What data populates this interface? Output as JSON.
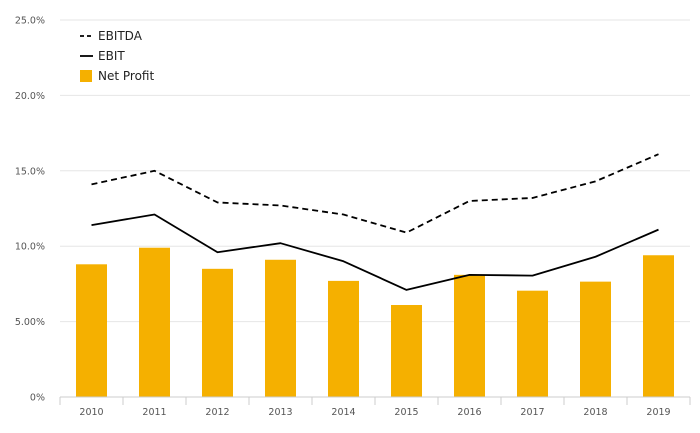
{
  "chart_data": {
    "type": "bar",
    "categories": [
      "2010",
      "2011",
      "2012",
      "2013",
      "2014",
      "2015",
      "2016",
      "2017",
      "2018",
      "2019"
    ],
    "series": [
      {
        "name": "EBITDA",
        "kind": "line",
        "style": "dashed",
        "color": "#000000",
        "values": [
          14.1,
          15.0,
          12.9,
          12.7,
          12.1,
          10.9,
          13.0,
          13.2,
          14.3,
          16.1
        ]
      },
      {
        "name": "EBIT",
        "kind": "line",
        "style": "solid",
        "color": "#000000",
        "values": [
          11.4,
          12.1,
          9.6,
          10.2,
          9.0,
          7.1,
          8.1,
          8.05,
          9.3,
          11.1
        ]
      },
      {
        "name": "Net Profit",
        "kind": "bar",
        "color": "#f5b000",
        "values": [
          8.8,
          9.9,
          8.5,
          9.1,
          7.7,
          6.1,
          8.1,
          7.05,
          7.65,
          9.4
        ]
      }
    ],
    "y_ticks": [
      "0%",
      "5.00%",
      "10.0%",
      "15.0%",
      "20.0%",
      "25.0%"
    ],
    "ylim": [
      0,
      25
    ],
    "grid": true,
    "legend": "top-left",
    "title": "",
    "xlabel": "",
    "ylabel": ""
  }
}
